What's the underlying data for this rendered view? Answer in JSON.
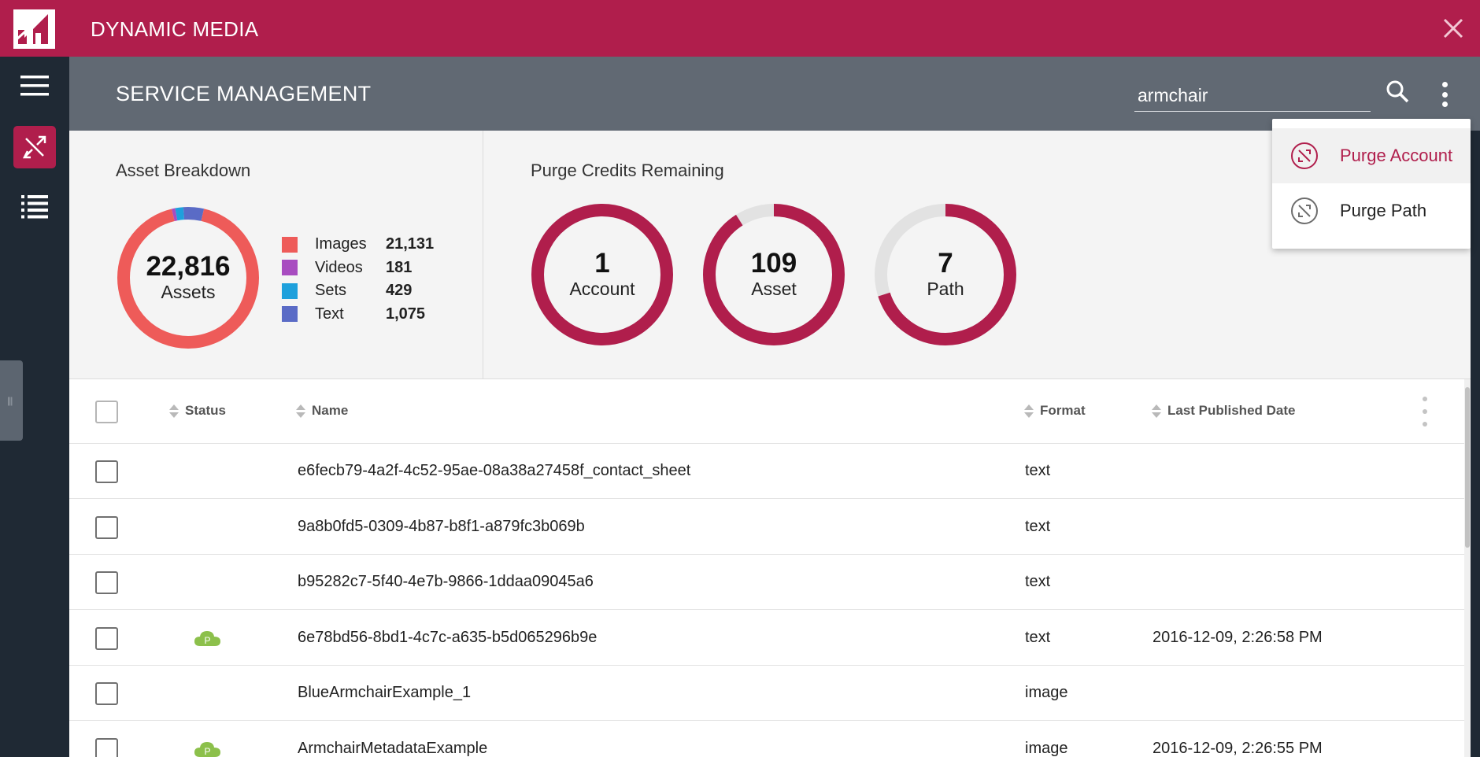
{
  "app": {
    "title": "DYNAMIC MEDIA"
  },
  "header": {
    "title": "SERVICE MANAGEMENT"
  },
  "search": {
    "value": "armchair",
    "placeholder": "Search"
  },
  "asset_breakdown": {
    "title": "Asset Breakdown",
    "total": "22,816",
    "total_label": "Assets",
    "legend": [
      {
        "name": "Images",
        "value": "21,131",
        "count": 21131,
        "color": "#ee5b59"
      },
      {
        "name": "Videos",
        "value": "181",
        "count": 181,
        "color": "#a84cc0"
      },
      {
        "name": "Sets",
        "value": "429",
        "count": 429,
        "color": "#1ea0dc"
      },
      {
        "name": "Text",
        "value": "1,075",
        "count": 1075,
        "color": "#5a6bc6"
      }
    ]
  },
  "purge_credits": {
    "title": "Purge Credits Remaining",
    "gauges": [
      {
        "value": "1",
        "label": "Account",
        "fill": 1.0
      },
      {
        "value": "109",
        "label": "Asset",
        "fill": 0.91
      },
      {
        "value": "7",
        "label": "Path",
        "fill": 0.7
      }
    ]
  },
  "menu": {
    "items": [
      {
        "label": "Purge Account",
        "selected": true,
        "icon": "purge-icon"
      },
      {
        "label": "Purge Path",
        "selected": false,
        "icon": "purge-icon"
      }
    ]
  },
  "table": {
    "columns": {
      "status": "Status",
      "name": "Name",
      "format": "Format",
      "last_published": "Last Published Date"
    },
    "status_badge": "P",
    "rows": [
      {
        "status": "",
        "name": "e6fecb79-4a2f-4c52-95ae-08a38a27458f_contact_sheet",
        "format": "text",
        "date": ""
      },
      {
        "status": "",
        "name": "9a8b0fd5-0309-4b87-b8f1-a879fc3b069b",
        "format": "text",
        "date": ""
      },
      {
        "status": "",
        "name": "b95282c7-5f40-4e7b-9866-1ddaa09045a6",
        "format": "text",
        "date": ""
      },
      {
        "status": "published",
        "name": "6e78bd56-8bd1-4c7c-a635-b5d065296b9e",
        "format": "text",
        "date": "2016-12-09, 2:26:58 PM"
      },
      {
        "status": "",
        "name": "BlueArmchairExample_1",
        "format": "image",
        "date": ""
      },
      {
        "status": "published",
        "name": "ArmchairMetadataExample",
        "format": "image",
        "date": "2016-12-09, 2:26:55 PM"
      }
    ]
  },
  "colors": {
    "brand": "#b01e4c",
    "header": "#616973",
    "rail": "#1f2934",
    "gauge_track": "#e2e2e2",
    "published": "#8cc04b"
  }
}
